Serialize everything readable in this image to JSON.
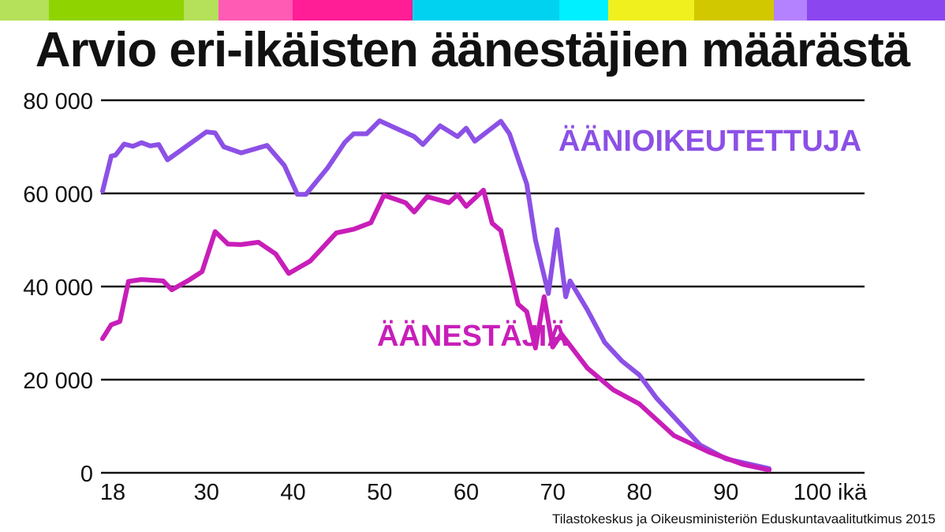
{
  "title": "Arvio eri-ikäisten äänestäjien määrästä",
  "source": "Tilastokeskus ja Oikeusministeriön Eduskuntavaalitutkimus 2015",
  "stripe_colors": [
    "#b5e05a",
    "#8fd400",
    "#b5e05a",
    "#ff5ab4",
    "#ff1e96",
    "#00d2f0",
    "#00f0ff",
    "#f0f01e",
    "#d2c800",
    "#b482ff",
    "#8c46f0"
  ],
  "chart_data": {
    "type": "line",
    "title": "Arvio eri-ikäisten äänestäjien määrästä",
    "xlabel": "ikä",
    "ylabel": "",
    "xlim": [
      18,
      100
    ],
    "ylim": [
      0,
      80000
    ],
    "x_ticks": [
      {
        "value": 18,
        "label": "18"
      },
      {
        "value": 30,
        "label": "30"
      },
      {
        "value": 40,
        "label": "40"
      },
      {
        "value": 50,
        "label": "50"
      },
      {
        "value": 60,
        "label": "60"
      },
      {
        "value": 70,
        "label": "70"
      },
      {
        "value": 80,
        "label": "80"
      },
      {
        "value": 90,
        "label": "90"
      },
      {
        "value": 100,
        "label": "100"
      }
    ],
    "x_unit_label": "ikä",
    "y_ticks": [
      {
        "value": 0,
        "label": "0"
      },
      {
        "value": 20000,
        "label": "20 000"
      },
      {
        "value": 40000,
        "label": "40 000"
      },
      {
        "value": 60000,
        "label": "60 000"
      },
      {
        "value": 80000,
        "label": "80 000"
      }
    ],
    "grid": "horizontal",
    "series": [
      {
        "name": "ÄÄNIOIKEUTETTUJA",
        "color": "#8c50e6",
        "points": [
          [
            18,
            60500
          ],
          [
            19,
            68000
          ],
          [
            19.5,
            68200
          ],
          [
            20.5,
            70600
          ],
          [
            21.5,
            70100
          ],
          [
            22.5,
            70900
          ],
          [
            23.5,
            70200
          ],
          [
            24.5,
            70500
          ],
          [
            25.5,
            67200
          ],
          [
            30,
            73200
          ],
          [
            31,
            73000
          ],
          [
            32,
            70000
          ],
          [
            34,
            68700
          ],
          [
            37,
            70300
          ],
          [
            39,
            66000
          ],
          [
            40.5,
            59800
          ],
          [
            41.5,
            59800
          ],
          [
            44,
            65500
          ],
          [
            46,
            71000
          ],
          [
            47,
            72800
          ],
          [
            48.5,
            72800
          ],
          [
            50,
            75600
          ],
          [
            54,
            72200
          ],
          [
            55,
            70500
          ],
          [
            57,
            74500
          ],
          [
            59,
            72200
          ],
          [
            60,
            74000
          ],
          [
            61,
            71200
          ],
          [
            64,
            75500
          ],
          [
            65,
            72800
          ],
          [
            67,
            62000
          ],
          [
            68,
            50000
          ],
          [
            69.5,
            38500
          ],
          [
            70.5,
            52200
          ],
          [
            71.5,
            37800
          ],
          [
            72,
            41200
          ],
          [
            74,
            35000
          ],
          [
            76,
            28000
          ],
          [
            78,
            24000
          ],
          [
            80,
            21000
          ],
          [
            82,
            16000
          ],
          [
            84,
            12000
          ],
          [
            87,
            6000
          ],
          [
            90,
            3000
          ],
          [
            95,
            900
          ]
        ]
      },
      {
        "name": "ÄÄNESTÄJIÄ",
        "color": "#c81eb9",
        "points": [
          [
            18,
            28800
          ],
          [
            19,
            31800
          ],
          [
            20,
            32500
          ],
          [
            21,
            41100
          ],
          [
            22.5,
            41500
          ],
          [
            25,
            41200
          ],
          [
            26,
            39300
          ],
          [
            28,
            41400
          ],
          [
            29.5,
            43200
          ],
          [
            31,
            51800
          ],
          [
            32.5,
            49100
          ],
          [
            34,
            49000
          ],
          [
            36,
            49500
          ],
          [
            38,
            47000
          ],
          [
            39.5,
            42800
          ],
          [
            42,
            45500
          ],
          [
            45,
            51500
          ],
          [
            47,
            52300
          ],
          [
            49,
            53700
          ],
          [
            50.5,
            59600
          ],
          [
            53,
            58000
          ],
          [
            54,
            56000
          ],
          [
            55.5,
            59300
          ],
          [
            58,
            58000
          ],
          [
            59,
            59700
          ],
          [
            60,
            57200
          ],
          [
            62,
            60700
          ],
          [
            63,
            53600
          ],
          [
            64,
            52000
          ],
          [
            66,
            36200
          ],
          [
            67,
            34600
          ],
          [
            68,
            26800
          ],
          [
            69,
            37800
          ],
          [
            70,
            27000
          ],
          [
            71,
            29800
          ],
          [
            74,
            22500
          ],
          [
            77,
            17800
          ],
          [
            80,
            14800
          ],
          [
            84,
            8000
          ],
          [
            88,
            4500
          ],
          [
            92,
            1800
          ],
          [
            95,
            600
          ]
        ]
      }
    ],
    "annotations": [
      {
        "text": "ÄÄNIOIKEUTETTUJA",
        "series": 0
      },
      {
        "text": "ÄÄNESTÄJIÄ",
        "series": 1
      }
    ]
  }
}
